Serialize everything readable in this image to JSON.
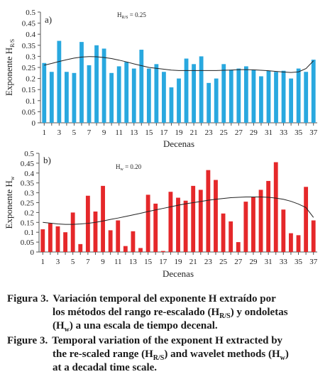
{
  "chart_data": [
    {
      "type": "bar",
      "panel_label": "a)",
      "annotation": "H_R/S = 0.25",
      "annotation_main": "H",
      "annotation_sub": "R/S",
      "annotation_value": " = 0.25",
      "ylabel_main": "Exponente H",
      "ylabel_sub": "R/S",
      "xlabel": "Decenas",
      "ylim": [
        0,
        0.5
      ],
      "yticks": [
        "0",
        "0.05",
        "0.1",
        "0.15",
        "0.2",
        "0.25",
        "0.3",
        "0.35",
        "0.4",
        "0.45",
        "0.5"
      ],
      "xticks": [
        "1",
        "3",
        "5",
        "7",
        "9",
        "11",
        "13",
        "15",
        "17",
        "19",
        "21",
        "23",
        "25",
        "27",
        "29",
        "31",
        "33",
        "35",
        "37"
      ],
      "bar_color": "#29a8df",
      "x": [
        1,
        2,
        3,
        4,
        5,
        6,
        7,
        8,
        9,
        10,
        11,
        12,
        13,
        14,
        15,
        16,
        17,
        18,
        19,
        20,
        21,
        22,
        23,
        24,
        25,
        26,
        27,
        28,
        29,
        30,
        31,
        32,
        33,
        34,
        35,
        36,
        37
      ],
      "values": [
        0.27,
        0.23,
        0.37,
        0.23,
        0.225,
        0.365,
        0.26,
        0.35,
        0.335,
        0.225,
        0.255,
        0.275,
        0.245,
        0.33,
        0.245,
        0.265,
        0.23,
        0.16,
        0.2,
        0.29,
        0.265,
        0.3,
        0.18,
        0.2,
        0.265,
        0.24,
        0.245,
        0.255,
        0.24,
        0.21,
        0.235,
        0.23,
        0.235,
        0.2,
        0.245,
        0.23,
        0.285
      ],
      "trend": [
        0.26,
        0.268,
        0.277,
        0.285,
        0.292,
        0.297,
        0.299,
        0.298,
        0.295,
        0.29,
        0.283,
        0.275,
        0.266,
        0.258,
        0.25,
        0.246,
        0.242,
        0.238,
        0.236,
        0.236,
        0.236,
        0.236,
        0.236,
        0.236,
        0.237,
        0.238,
        0.24,
        0.24,
        0.239,
        0.237,
        0.235,
        0.232,
        0.229,
        0.227,
        0.23,
        0.245,
        0.28
      ]
    },
    {
      "type": "bar",
      "panel_label": "b)",
      "annotation": "H_w = 0.20",
      "annotation_main": "H",
      "annotation_sub": "w",
      "annotation_value": " = 0.20",
      "ylabel_main": "Exponente H",
      "ylabel_sub": "w",
      "xlabel": "Decenas",
      "ylim": [
        0,
        0.5
      ],
      "yticks": [
        "0",
        "0.05",
        "0.1",
        "0.15",
        "0.2",
        "0.25",
        "0.3",
        "0.35",
        "0.4",
        "0.45",
        "0.5"
      ],
      "xticks": [
        "1",
        "3",
        "5",
        "7",
        "9",
        "11",
        "13",
        "15",
        "17",
        "19",
        "21",
        "23",
        "25",
        "27",
        "29",
        "31",
        "33",
        "35",
        "37"
      ],
      "bar_color": "#e5282a",
      "x": [
        1,
        2,
        3,
        4,
        5,
        6,
        7,
        8,
        9,
        10,
        11,
        12,
        13,
        14,
        15,
        16,
        17,
        18,
        19,
        20,
        21,
        22,
        23,
        24,
        25,
        26,
        27,
        28,
        29,
        30,
        31,
        32,
        33,
        34,
        35,
        36,
        37
      ],
      "values": [
        0.115,
        0.145,
        0.13,
        0.1,
        0.2,
        0.04,
        0.285,
        0.205,
        0.335,
        0.11,
        0.16,
        0.03,
        0.105,
        0.02,
        0.29,
        0.245,
        0.005,
        0.305,
        0.275,
        0.26,
        0.335,
        0.315,
        0.415,
        0.365,
        0.195,
        0.155,
        0.05,
        0.255,
        0.28,
        0.315,
        0.36,
        0.455,
        0.215,
        0.095,
        0.085,
        0.33,
        0.16
      ],
      "trend": [
        0.15,
        0.146,
        0.142,
        0.14,
        0.14,
        0.142,
        0.145,
        0.15,
        0.157,
        0.165,
        0.172,
        0.18,
        0.188,
        0.196,
        0.205,
        0.213,
        0.221,
        0.229,
        0.237,
        0.244,
        0.25,
        0.256,
        0.262,
        0.267,
        0.271,
        0.275,
        0.277,
        0.279,
        0.279,
        0.279,
        0.277,
        0.273,
        0.267,
        0.257,
        0.243,
        0.225,
        0.175
      ]
    }
  ],
  "captions": [
    {
      "number": "Figura 3.",
      "line1": "Variación temporal del exponente H extraído por",
      "line2a": "los métodos del rango re-escalado (H",
      "line2sub": "R/S",
      "line2b": ") y ondoletas",
      "line3a": "(H",
      "line3sub": "w",
      "line3b": ") a una escala de tiempo decenal."
    },
    {
      "number": "Figure 3.",
      "line1": "Temporal variation of the exponent H extracted by",
      "line2a": "the re-scaled range (H",
      "line2sub": "R/S",
      "line2b": ") and wavelet methods (H",
      "line2sub2": "w",
      "line2c": ")",
      "line3": "at a decadal time scale."
    }
  ]
}
